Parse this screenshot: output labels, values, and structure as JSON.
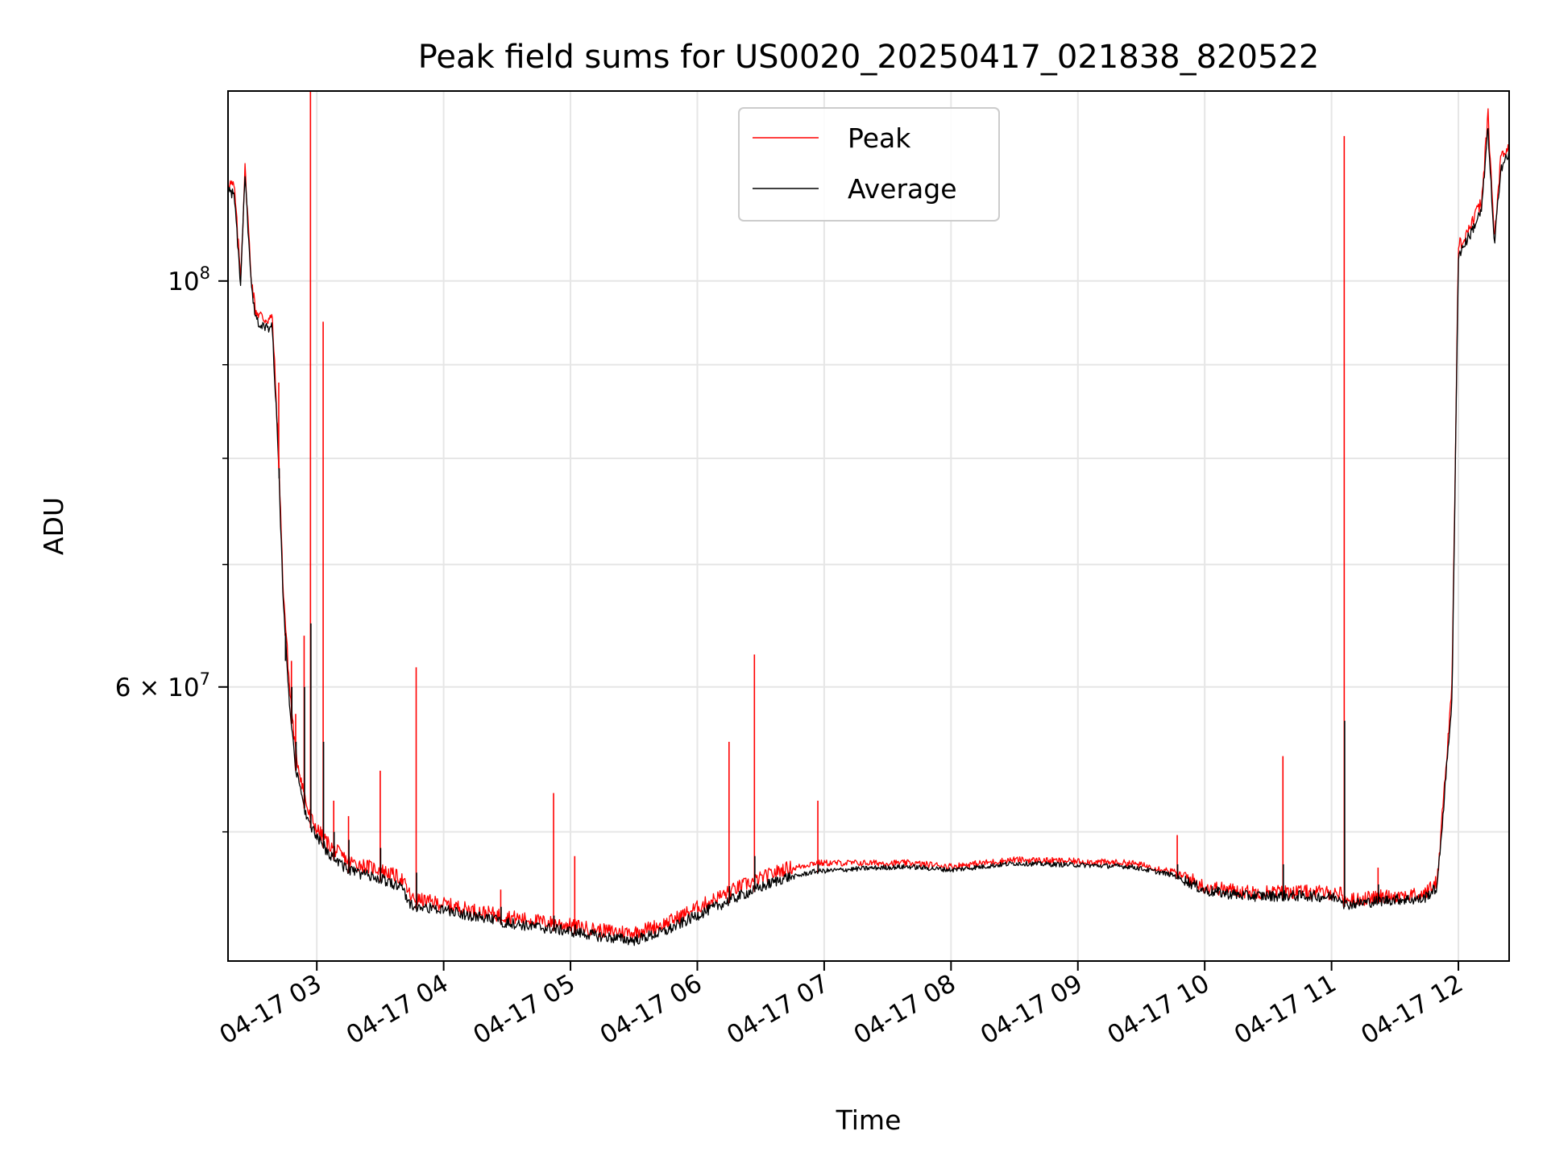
{
  "chart_data": {
    "type": "line",
    "title": "Peak field sums for US0020_20250417_021838_820522",
    "xlabel": "Time",
    "ylabel": "ADU",
    "yscale": "log",
    "xlim": [
      "04-17 02:18",
      "04-17 12:24"
    ],
    "ylim": [
      42500000,
      127000000
    ],
    "grid": true,
    "legend": {
      "placement": "top-center"
    },
    "x_ticks": [
      {
        "label": "04-17 03",
        "time": "04-17 03:00"
      },
      {
        "label": "04-17 04",
        "time": "04-17 04:00"
      },
      {
        "label": "04-17 05",
        "time": "04-17 05:00"
      },
      {
        "label": "04-17 06",
        "time": "04-17 06:00"
      },
      {
        "label": "04-17 07",
        "time": "04-17 07:00"
      },
      {
        "label": "04-17 08",
        "time": "04-17 08:00"
      },
      {
        "label": "04-17 09",
        "time": "04-17 09:00"
      },
      {
        "label": "04-17 10",
        "time": "04-17 10:00"
      },
      {
        "label": "04-17 11",
        "time": "04-17 11:00"
      },
      {
        "label": "04-17 12",
        "time": "04-17 12:00"
      }
    ],
    "y_major_ticks": [
      {
        "base": "10",
        "exp": "8",
        "value": 100000000
      },
      {
        "base": "6 × 10",
        "exp": "7",
        "value": 60000000
      }
    ],
    "y_minor_ticks": [
      50000000,
      70000000,
      80000000,
      90000000
    ],
    "series": [
      {
        "name": "Peak",
        "color": "#ff0000",
        "x": [
          "04-17 02:18",
          "04-17 02:21",
          "04-17 02:24",
          "04-17 02:26",
          "04-17 02:29",
          "04-17 02:31",
          "04-17 02:35",
          "04-17 02:39",
          "04-17 02:42",
          "04-17 02:44",
          "04-17 02:47",
          "04-17 02:50",
          "04-17 02:53",
          "04-17 02:56",
          "04-17 03:00",
          "04-17 03:06",
          "04-17 03:15",
          "04-17 03:30",
          "04-17 03:40",
          "04-17 03:45",
          "04-17 04:00",
          "04-17 04:20",
          "04-17 04:40",
          "04-17 05:00",
          "04-17 05:15",
          "04-17 05:30",
          "04-17 05:45",
          "04-17 06:00",
          "04-17 06:20",
          "04-17 06:40",
          "04-17 06:55",
          "04-17 07:20",
          "04-17 07:40",
          "04-17 08:00",
          "04-17 08:30",
          "04-17 09:00",
          "04-17 09:25",
          "04-17 09:45",
          "04-17 10:00",
          "04-17 10:20",
          "04-17 10:50",
          "04-17 11:05",
          "04-17 11:06",
          "04-17 11:30",
          "04-17 11:43",
          "04-17 11:50",
          "04-17 11:57",
          "04-17 12:00",
          "04-17 12:06",
          "04-17 12:11",
          "04-17 12:14",
          "04-17 12:17",
          "04-17 12:20",
          "04-17 12:24"
        ],
        "values": [
          113000000,
          112000000,
          100000000,
          115000000,
          100000000,
          96000000,
          95000000,
          95000000,
          80000000,
          68000000,
          60000000,
          55000000,
          53000000,
          51000000,
          50000000,
          49000000,
          48000000,
          47500000,
          47000000,
          45800000,
          45500000,
          45000000,
          44600000,
          44300000,
          44000000,
          43900000,
          44400000,
          45300000,
          46500000,
          47500000,
          48000000,
          48000000,
          48000000,
          47800000,
          48200000,
          48100000,
          48000000,
          47500000,
          46500000,
          46200000,
          46200000,
          46100000,
          45700000,
          46000000,
          46000000,
          46800000,
          60000000,
          104000000,
          107000000,
          110000000,
          123000000,
          105000000,
          116000000,
          118000000
        ]
      },
      {
        "name": "Average",
        "color": "#000000",
        "x": [
          "04-17 02:18",
          "04-17 02:21",
          "04-17 02:24",
          "04-17 02:26",
          "04-17 02:29",
          "04-17 02:31",
          "04-17 02:35",
          "04-17 02:39",
          "04-17 02:42",
          "04-17 02:44",
          "04-17 02:47",
          "04-17 02:50",
          "04-17 02:53",
          "04-17 02:56",
          "04-17 03:00",
          "04-17 03:06",
          "04-17 03:15",
          "04-17 03:30",
          "04-17 03:40",
          "04-17 03:45",
          "04-17 04:00",
          "04-17 04:20",
          "04-17 04:40",
          "04-17 05:00",
          "04-17 05:15",
          "04-17 05:30",
          "04-17 05:45",
          "04-17 06:00",
          "04-17 06:20",
          "04-17 06:40",
          "04-17 06:55",
          "04-17 07:20",
          "04-17 07:40",
          "04-17 08:00",
          "04-17 08:30",
          "04-17 09:00",
          "04-17 09:25",
          "04-17 09:45",
          "04-17 10:00",
          "04-17 10:20",
          "04-17 10:50",
          "04-17 11:05",
          "04-17 11:06",
          "04-17 11:30",
          "04-17 11:43",
          "04-17 11:50",
          "04-17 11:57",
          "04-17 12:00",
          "04-17 12:06",
          "04-17 12:11",
          "04-17 12:14",
          "04-17 12:17",
          "04-17 12:20",
          "04-17 12:24"
        ],
        "values": [
          112000000,
          111000000,
          99000000,
          114000000,
          99000000,
          95000000,
          94000000,
          94000000,
          79000000,
          67000000,
          59000000,
          54000000,
          52000000,
          50500000,
          49500000,
          48500000,
          47500000,
          47000000,
          46500000,
          45400000,
          45200000,
          44700000,
          44300000,
          44000000,
          43700000,
          43500000,
          44000000,
          44900000,
          46000000,
          47000000,
          47500000,
          47700000,
          47800000,
          47600000,
          48000000,
          47900000,
          47800000,
          47300000,
          46300000,
          46000000,
          46000000,
          45900000,
          45500000,
          45800000,
          45800000,
          46500000,
          59000000,
          103000000,
          106000000,
          109000000,
          121000000,
          104000000,
          115000000,
          117000000
        ]
      }
    ],
    "spikes": [
      {
        "time": "04-17 02:42",
        "peak": 88000000,
        "average": 78000000
      },
      {
        "time": "04-17 02:45",
        "peak": 64000000,
        "average": 62000000
      },
      {
        "time": "04-17 02:48",
        "peak": 62000000,
        "average": 60000000
      },
      {
        "time": "04-17 02:50",
        "peak": 58000000,
        "average": 56000000
      },
      {
        "time": "04-17 02:54",
        "peak": 64000000,
        "average": 60000000
      },
      {
        "time": "04-17 02:57",
        "peak": 127000000,
        "average": 65000000
      },
      {
        "time": "04-17 03:03",
        "peak": 95000000,
        "average": 56000000
      },
      {
        "time": "04-17 03:08",
        "peak": 52000000,
        "average": 50000000
      },
      {
        "time": "04-17 03:15",
        "peak": 51000000,
        "average": 49500000
      },
      {
        "time": "04-17 03:30",
        "peak": 54000000,
        "average": 49000000
      },
      {
        "time": "04-17 03:47",
        "peak": 61500000,
        "average": 47500000
      },
      {
        "time": "04-17 04:27",
        "peak": 46500000,
        "average": 45500000
      },
      {
        "time": "04-17 04:52",
        "peak": 52500000,
        "average": 45000000
      },
      {
        "time": "04-17 05:02",
        "peak": 48500000,
        "average": 44500000
      },
      {
        "time": "04-17 06:15",
        "peak": 56000000,
        "average": 46700000
      },
      {
        "time": "04-17 06:27",
        "peak": 62500000,
        "average": 48500000
      },
      {
        "time": "04-17 06:57",
        "peak": 52000000,
        "average": 48000000
      },
      {
        "time": "04-17 09:47",
        "peak": 49800000,
        "average": 48000000
      },
      {
        "time": "04-17 10:37",
        "peak": 55000000,
        "average": 48000000
      },
      {
        "time": "04-17 11:06",
        "peak": 120000000,
        "average": 57500000
      },
      {
        "time": "04-17 11:22",
        "peak": 47800000,
        "average": 46800000
      }
    ]
  }
}
